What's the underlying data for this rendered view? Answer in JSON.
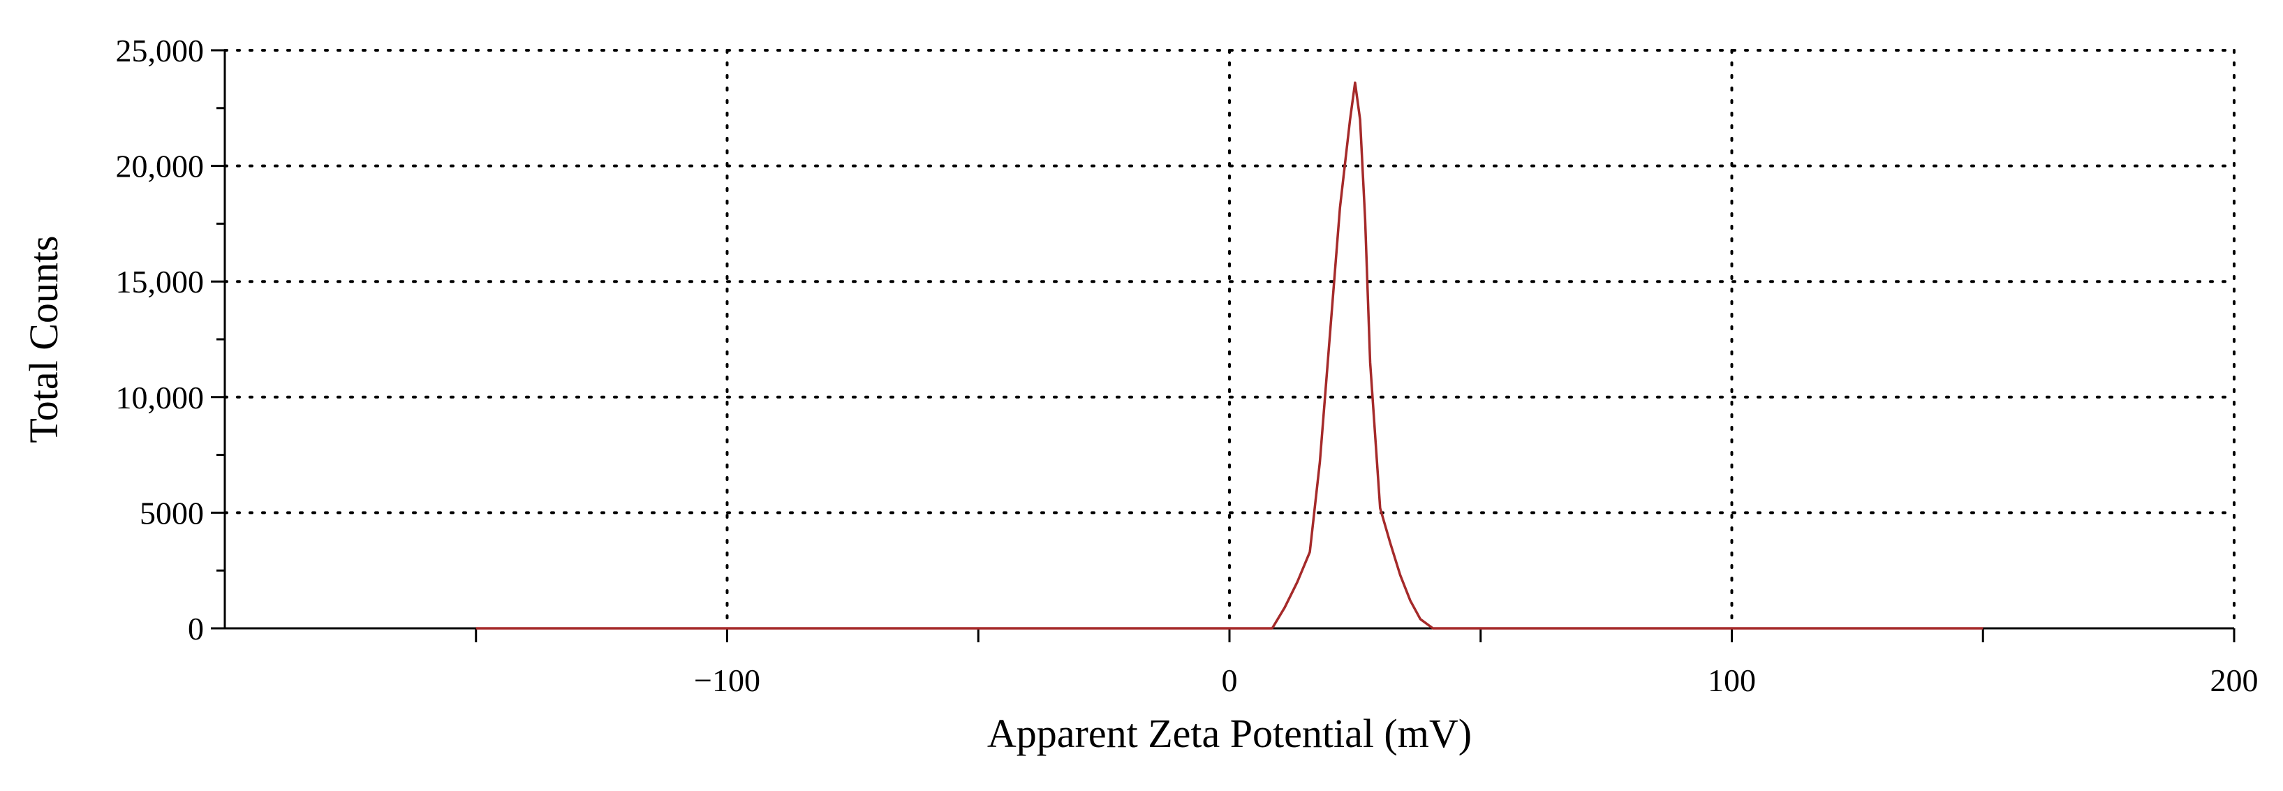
{
  "chart_data": {
    "type": "line",
    "xlabel": "Apparent Zeta Potential (mV)",
    "ylabel": "Total Counts",
    "xlim": [
      -200,
      200
    ],
    "ylim": [
      0,
      25000
    ],
    "x_ticks": [
      -100,
      0,
      100,
      200
    ],
    "x_tick_labels": [
      "−100",
      "0",
      "100",
      "200"
    ],
    "x_minor_ticks": [
      -150,
      -50,
      50,
      150
    ],
    "y_ticks": [
      0,
      5000,
      10000,
      15000,
      20000,
      25000
    ],
    "y_tick_labels": [
      "0",
      "5000",
      "10,000",
      "15,000",
      "20,000",
      "25,000"
    ],
    "y_minor_ticks": [
      2500,
      7500,
      12500,
      17500,
      22500
    ],
    "grid": true,
    "colors": {
      "series": "#a52a2a",
      "axis": "#000000",
      "grid": "#000000"
    },
    "series": [
      {
        "x": [
          -150,
          -100,
          -50,
          0,
          5,
          8.5,
          11,
          13.5,
          16,
          18,
          20,
          22,
          24,
          25,
          26,
          27,
          28,
          30,
          32,
          34,
          36,
          38,
          40.5,
          45,
          50,
          100,
          150
        ],
        "y": [
          0,
          0,
          0,
          0,
          0,
          0,
          900,
          2000,
          3300,
          7200,
          12700,
          18200,
          22000,
          23600,
          22000,
          17700,
          11500,
          5200,
          3700,
          2300,
          1200,
          400,
          0,
          0,
          0,
          0,
          0
        ]
      }
    ]
  }
}
